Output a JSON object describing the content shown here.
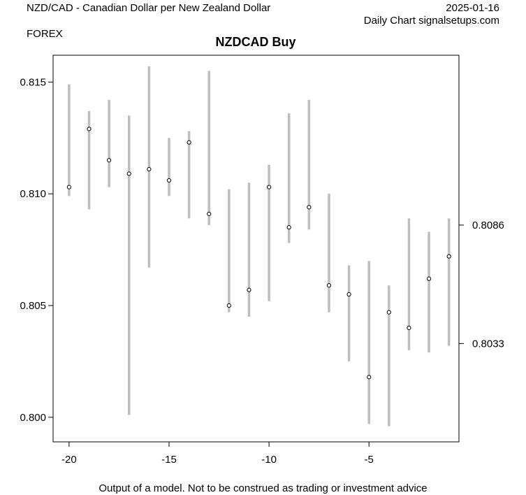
{
  "header": {
    "pair_title": "NZD/CAD - Canadian Dollar per New Zealand Dollar",
    "date": "2025-01-16",
    "source": "Daily Chart signalsetups.com",
    "category": "FOREX"
  },
  "footer": {
    "disclaimer": "Output of a model. Not to be construed as trading or investment advice"
  },
  "chart_data": {
    "type": "scatter",
    "title": "NZDCAD Buy",
    "xlabel": "",
    "ylabel": "",
    "xlim": [
      -20.8,
      -0.5
    ],
    "ylim": [
      0.7989,
      0.8162
    ],
    "x_ticks": [
      -20,
      -15,
      -10,
      -5
    ],
    "x_tick_labels": [
      "-20",
      "-15",
      "-10",
      "-5"
    ],
    "y_ticks": [
      0.8,
      0.805,
      0.81,
      0.815
    ],
    "y_tick_labels": [
      "0.800",
      "0.805",
      "0.810",
      "0.815"
    ],
    "right_axis_ticks": [
      0.8086,
      0.8033
    ],
    "right_axis_tick_labels": [
      "0.8086",
      "0.8033"
    ],
    "grid": false,
    "range_color": "#bebebe",
    "point_color": "#000000",
    "points": [
      {
        "x": -20,
        "close": 0.8103,
        "low": 0.8099,
        "high": 0.8149
      },
      {
        "x": -19,
        "close": 0.8129,
        "low": 0.8093,
        "high": 0.8137
      },
      {
        "x": -18,
        "close": 0.8115,
        "low": 0.8103,
        "high": 0.8142
      },
      {
        "x": -17,
        "close": 0.8109,
        "low": 0.8001,
        "high": 0.8135
      },
      {
        "x": -16,
        "close": 0.8111,
        "low": 0.8067,
        "high": 0.8157
      },
      {
        "x": -15,
        "close": 0.8106,
        "low": 0.8099,
        "high": 0.8125
      },
      {
        "x": -14,
        "close": 0.8123,
        "low": 0.8089,
        "high": 0.8128
      },
      {
        "x": -13,
        "close": 0.8091,
        "low": 0.8086,
        "high": 0.8155
      },
      {
        "x": -12,
        "close": 0.805,
        "low": 0.8047,
        "high": 0.8102
      },
      {
        "x": -11,
        "close": 0.8057,
        "low": 0.8045,
        "high": 0.8105
      },
      {
        "x": -10,
        "close": 0.8103,
        "low": 0.8052,
        "high": 0.8113
      },
      {
        "x": -9,
        "close": 0.8085,
        "low": 0.8078,
        "high": 0.8136
      },
      {
        "x": -8,
        "close": 0.8094,
        "low": 0.8084,
        "high": 0.8142
      },
      {
        "x": -7,
        "close": 0.8059,
        "low": 0.8047,
        "high": 0.81
      },
      {
        "x": -6,
        "close": 0.8055,
        "low": 0.8025,
        "high": 0.8068
      },
      {
        "x": -5,
        "close": 0.8018,
        "low": 0.7997,
        "high": 0.807
      },
      {
        "x": -4,
        "close": 0.8047,
        "low": 0.7996,
        "high": 0.8059
      },
      {
        "x": -3,
        "close": 0.804,
        "low": 0.803,
        "high": 0.8089
      },
      {
        "x": -2,
        "close": 0.8062,
        "low": 0.8029,
        "high": 0.8083
      },
      {
        "x": -1,
        "close": 0.8072,
        "low": 0.8032,
        "high": 0.8089
      }
    ]
  }
}
